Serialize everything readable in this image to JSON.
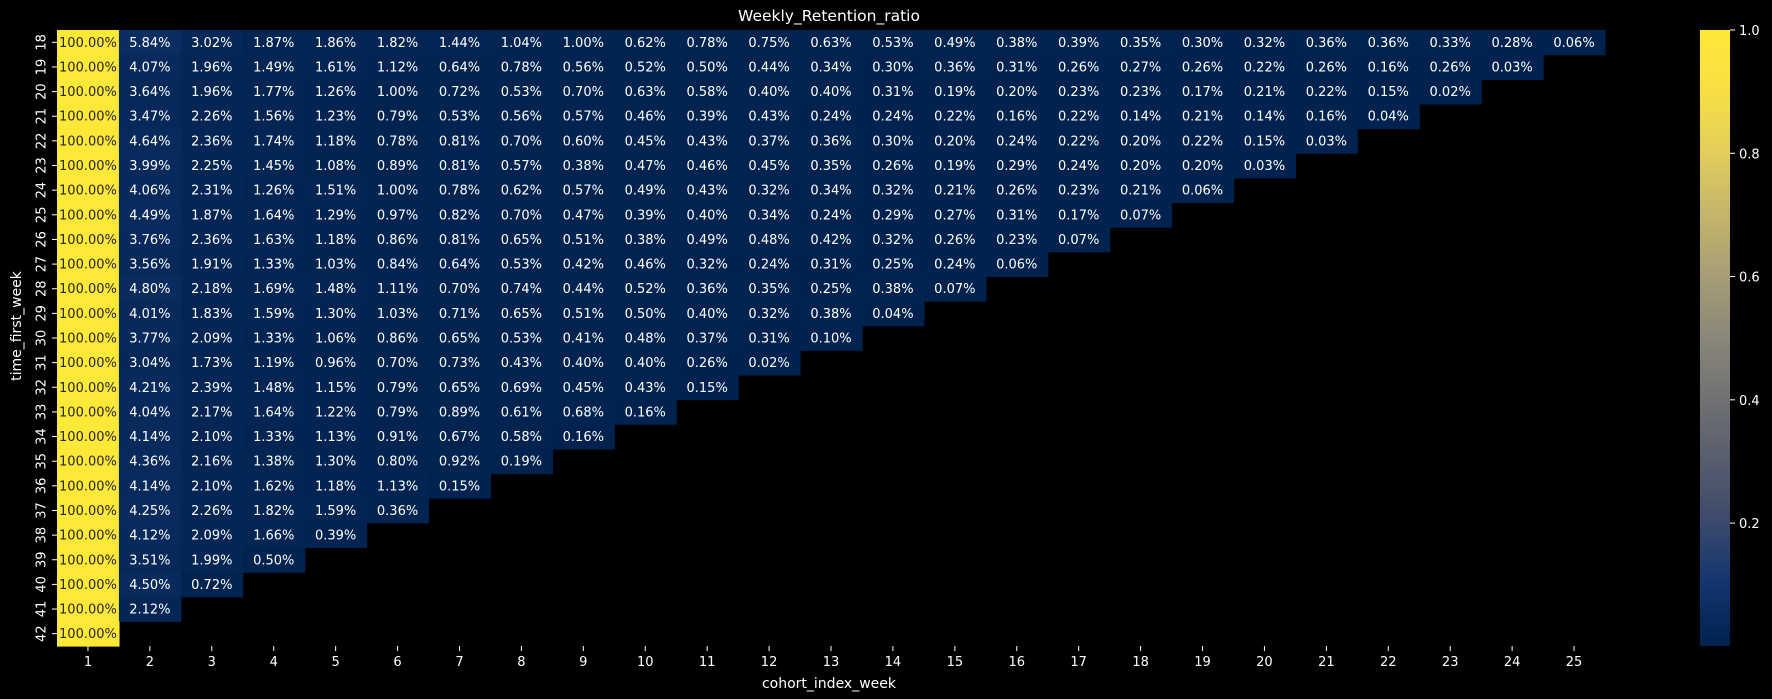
{
  "chart_data": {
    "type": "heatmap",
    "title": "Weekly_Retention_ratio",
    "xlabel": "cohort_index_week",
    "ylabel": "time_first_week",
    "x_categories": [
      "1",
      "2",
      "3",
      "4",
      "5",
      "6",
      "7",
      "8",
      "9",
      "10",
      "11",
      "12",
      "13",
      "14",
      "15",
      "16",
      "17",
      "18",
      "19",
      "20",
      "21",
      "22",
      "23",
      "24",
      "25"
    ],
    "y_categories": [
      "18",
      "19",
      "20",
      "21",
      "22",
      "23",
      "24",
      "25",
      "26",
      "27",
      "28",
      "29",
      "30",
      "31",
      "32",
      "33",
      "34",
      "35",
      "36",
      "37",
      "38",
      "39",
      "40",
      "41",
      "42"
    ],
    "value_format": "percent_2dp",
    "values": [
      [
        100.0,
        5.84,
        3.02,
        1.87,
        1.86,
        1.82,
        1.44,
        1.04,
        1.0,
        0.62,
        0.78,
        0.75,
        0.63,
        0.53,
        0.49,
        0.38,
        0.39,
        0.35,
        0.3,
        0.32,
        0.36,
        0.36,
        0.33,
        0.28,
        0.06
      ],
      [
        100.0,
        4.07,
        1.96,
        1.49,
        1.61,
        1.12,
        0.64,
        0.78,
        0.56,
        0.52,
        0.5,
        0.44,
        0.34,
        0.3,
        0.36,
        0.31,
        0.26,
        0.27,
        0.26,
        0.22,
        0.26,
        0.16,
        0.26,
        0.03
      ],
      [
        100.0,
        3.64,
        1.96,
        1.77,
        1.26,
        1.0,
        0.72,
        0.53,
        0.7,
        0.63,
        0.58,
        0.4,
        0.4,
        0.31,
        0.19,
        0.2,
        0.23,
        0.23,
        0.17,
        0.21,
        0.22,
        0.15,
        0.02
      ],
      [
        100.0,
        3.47,
        2.26,
        1.56,
        1.23,
        0.79,
        0.53,
        0.56,
        0.57,
        0.46,
        0.39,
        0.43,
        0.24,
        0.24,
        0.22,
        0.16,
        0.22,
        0.14,
        0.21,
        0.14,
        0.16,
        0.04
      ],
      [
        100.0,
        4.64,
        2.36,
        1.74,
        1.18,
        0.78,
        0.81,
        0.7,
        0.6,
        0.45,
        0.43,
        0.37,
        0.36,
        0.3,
        0.2,
        0.24,
        0.22,
        0.2,
        0.22,
        0.15,
        0.03
      ],
      [
        100.0,
        3.99,
        2.25,
        1.45,
        1.08,
        0.89,
        0.81,
        0.57,
        0.38,
        0.47,
        0.46,
        0.45,
        0.35,
        0.26,
        0.19,
        0.29,
        0.24,
        0.2,
        0.2,
        0.03
      ],
      [
        100.0,
        4.06,
        2.31,
        1.26,
        1.51,
        1.0,
        0.78,
        0.62,
        0.57,
        0.49,
        0.43,
        0.32,
        0.34,
        0.32,
        0.21,
        0.26,
        0.23,
        0.21,
        0.06
      ],
      [
        100.0,
        4.49,
        1.87,
        1.64,
        1.29,
        0.97,
        0.82,
        0.7,
        0.47,
        0.39,
        0.4,
        0.34,
        0.24,
        0.29,
        0.27,
        0.31,
        0.17,
        0.07
      ],
      [
        100.0,
        3.76,
        2.36,
        1.63,
        1.18,
        0.86,
        0.81,
        0.65,
        0.51,
        0.38,
        0.49,
        0.48,
        0.42,
        0.32,
        0.26,
        0.23,
        0.07
      ],
      [
        100.0,
        3.56,
        1.91,
        1.33,
        1.03,
        0.84,
        0.64,
        0.53,
        0.42,
        0.46,
        0.32,
        0.24,
        0.31,
        0.25,
        0.24,
        0.06
      ],
      [
        100.0,
        4.8,
        2.18,
        1.69,
        1.48,
        1.11,
        0.7,
        0.74,
        0.44,
        0.52,
        0.36,
        0.35,
        0.25,
        0.38,
        0.07
      ],
      [
        100.0,
        4.01,
        1.83,
        1.59,
        1.3,
        1.03,
        0.71,
        0.65,
        0.51,
        0.5,
        0.4,
        0.32,
        0.38,
        0.04
      ],
      [
        100.0,
        3.77,
        2.09,
        1.33,
        1.06,
        0.86,
        0.65,
        0.53,
        0.41,
        0.48,
        0.37,
        0.31,
        0.1
      ],
      [
        100.0,
        3.04,
        1.73,
        1.19,
        0.96,
        0.7,
        0.73,
        0.43,
        0.4,
        0.4,
        0.26,
        0.02
      ],
      [
        100.0,
        4.21,
        2.39,
        1.48,
        1.15,
        0.79,
        0.65,
        0.69,
        0.45,
        0.43,
        0.15
      ],
      [
        100.0,
        4.04,
        2.17,
        1.64,
        1.22,
        0.79,
        0.89,
        0.61,
        0.68,
        0.16
      ],
      [
        100.0,
        4.14,
        2.1,
        1.33,
        1.13,
        0.91,
        0.67,
        0.58,
        0.16
      ],
      [
        100.0,
        4.36,
        2.16,
        1.38,
        1.3,
        0.8,
        0.92,
        0.19
      ],
      [
        100.0,
        4.14,
        2.1,
        1.62,
        1.18,
        1.13,
        0.15
      ],
      [
        100.0,
        4.25,
        2.26,
        1.82,
        1.59,
        0.36
      ],
      [
        100.0,
        4.12,
        2.09,
        1.66,
        0.39
      ],
      [
        100.0,
        3.51,
        1.99,
        0.5
      ],
      [
        100.0,
        4.5,
        0.72
      ],
      [
        100.0,
        2.12
      ],
      [
        100.0
      ]
    ],
    "colorbar": {
      "colormap": "cividis",
      "ticks": [
        "0.2",
        "0.4",
        "0.6",
        "0.8",
        "1.0"
      ],
      "tick_values": [
        0.2,
        0.4,
        0.6,
        0.8,
        1.0
      ],
      "range": [
        0.0006,
        1.0
      ]
    },
    "grid": false,
    "background": "#000000",
    "colors": {
      "low": "#00224e",
      "mid": "#7c7b78",
      "high": "#fee838"
    }
  }
}
